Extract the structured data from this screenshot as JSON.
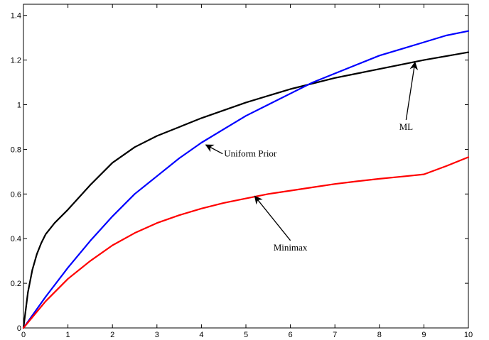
{
  "chart_data": {
    "type": "line",
    "title": "",
    "xlabel": "",
    "ylabel": "",
    "xlim": [
      0,
      10
    ],
    "ylim": [
      0,
      1.45
    ],
    "x_ticks": [
      0,
      1,
      2,
      3,
      4,
      5,
      6,
      7,
      8,
      9,
      10
    ],
    "y_ticks": [
      0,
      0.2,
      0.4,
      0.6,
      0.8,
      1,
      1.2,
      1.4
    ],
    "grid": false,
    "legend": "none",
    "series": [
      {
        "name": "ML",
        "color": "#000000",
        "x": [
          0,
          0.1,
          0.2,
          0.3,
          0.4,
          0.5,
          0.7,
          1,
          1.5,
          2,
          2.5,
          3,
          3.5,
          4,
          5,
          6,
          7,
          7.5,
          8,
          9,
          10
        ],
        "y": [
          0,
          0.16,
          0.26,
          0.33,
          0.38,
          0.42,
          0.47,
          0.53,
          0.64,
          0.74,
          0.81,
          0.86,
          0.9,
          0.94,
          1.01,
          1.07,
          1.12,
          1.14,
          1.16,
          1.2,
          1.235
        ]
      },
      {
        "name": "Uniform Prior",
        "color": "#0000ff",
        "x": [
          0,
          0.5,
          1,
          1.5,
          2,
          2.5,
          3,
          3.5,
          4,
          4.5,
          5,
          5.5,
          6,
          6.5,
          7,
          7.5,
          8,
          8.5,
          9,
          9.5,
          10
        ],
        "y": [
          0,
          0.14,
          0.27,
          0.39,
          0.5,
          0.6,
          0.68,
          0.76,
          0.83,
          0.89,
          0.95,
          1.0,
          1.05,
          1.1,
          1.14,
          1.18,
          1.22,
          1.25,
          1.28,
          1.31,
          1.33
        ]
      },
      {
        "name": "Minimax",
        "color": "#ff0000",
        "x": [
          0,
          0.5,
          1,
          1.5,
          2,
          2.5,
          3,
          3.5,
          4,
          4.5,
          5,
          5.5,
          6,
          6.5,
          7,
          7.5,
          8,
          8.5,
          9,
          9.5,
          10
        ],
        "y": [
          0,
          0.12,
          0.22,
          0.3,
          0.37,
          0.425,
          0.47,
          0.505,
          0.535,
          0.56,
          0.58,
          0.6,
          0.615,
          0.63,
          0.645,
          0.657,
          0.668,
          0.678,
          0.688,
          0.725,
          0.765
        ]
      }
    ],
    "annotations": [
      {
        "text": "ML",
        "text_at": [
          8.6,
          0.9
        ],
        "arrow_to": [
          8.8,
          1.19
        ]
      },
      {
        "text": "Uniform Prior",
        "text_at": [
          5.1,
          0.78
        ],
        "arrow_to": [
          4.1,
          0.82
        ]
      },
      {
        "text": "Minimax",
        "text_at": [
          6.0,
          0.36
        ],
        "arrow_to": [
          5.2,
          0.59
        ]
      }
    ]
  }
}
